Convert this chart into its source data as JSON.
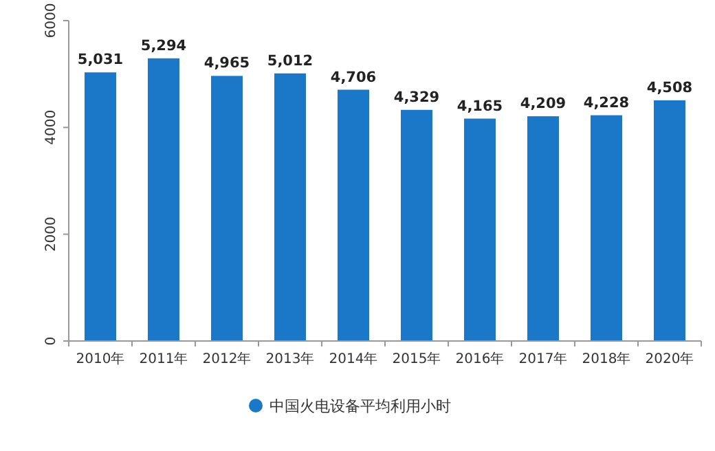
{
  "chart_data": {
    "type": "bar",
    "categories": [
      "2010年",
      "2011年",
      "2012年",
      "2013年",
      "2014年",
      "2015年",
      "2016年",
      "2017年",
      "2018年",
      "2020年"
    ],
    "series": [
      {
        "name": "中国火电设备平均利用小时",
        "color": "#1b78c8",
        "values": [
          5031,
          5294,
          4965,
          5012,
          4706,
          4329,
          4165,
          4209,
          4228,
          4508
        ],
        "value_labels": [
          "5,031",
          "5,294",
          "4,965",
          "5,012",
          "4,706",
          "4,329",
          "4,165",
          "4,209",
          "4,228",
          "4,508"
        ]
      }
    ],
    "ylim": [
      0,
      6000
    ],
    "yticks": [
      0,
      2000,
      4000,
      6000
    ],
    "legend": "bottom",
    "grid": false
  }
}
